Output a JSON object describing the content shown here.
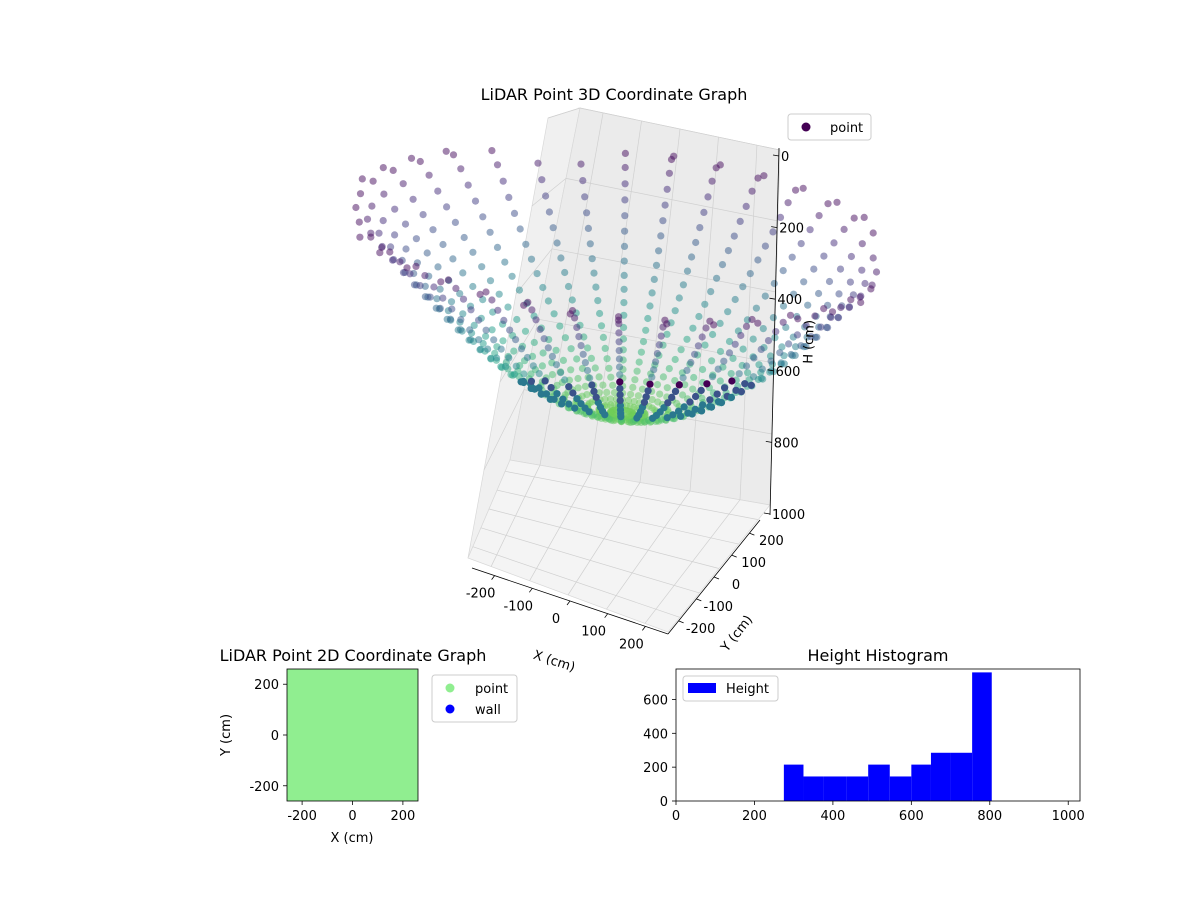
{
  "chart_data": [
    {
      "type": "scatter",
      "projection": "3d",
      "title": "LiDAR Point 3D Coordinate Graph",
      "xlabel": "X (cm)",
      "ylabel": "Y (cm)",
      "zlabel": "H (cm)",
      "xlim": [
        -260,
        260
      ],
      "ylim": [
        -260,
        260
      ],
      "zlim": [
        0,
        1000
      ],
      "z_inverted": true,
      "x_ticks": [
        -200,
        -100,
        0,
        100,
        200
      ],
      "y_ticks": [
        -200,
        -100,
        0,
        100,
        200
      ],
      "z_ticks": [
        0,
        200,
        400,
        600,
        800,
        1000
      ],
      "legend": [
        "point"
      ],
      "legend_position": "upper-right",
      "colormap": "viridis",
      "grid": true,
      "series": [
        {
          "name": "point",
          "shape": "bowl",
          "radius_range": [
            0,
            260
          ],
          "depth_range": [
            250,
            800
          ],
          "azimuth_count": 36,
          "radial_count": 24,
          "marker_color": "#440154"
        }
      ]
    },
    {
      "type": "scatter",
      "title": "LiDAR Point 2D Coordinate Graph",
      "xlabel": "X (cm)",
      "ylabel": "Y (cm)",
      "xlim": [
        -260,
        260
      ],
      "ylim": [
        -260,
        260
      ],
      "x_ticks": [
        -200,
        0,
        200
      ],
      "y_ticks": [
        -200,
        0,
        200
      ],
      "series": [
        {
          "name": "point",
          "color": "#90ee90"
        },
        {
          "name": "wall",
          "color": "#0000ff"
        }
      ],
      "legend_position": "outside-right"
    },
    {
      "type": "bar",
      "subtype": "histogram",
      "title": "Height Histogram",
      "xlim": [
        0,
        1030
      ],
      "ylim": [
        0,
        780
      ],
      "x_ticks": [
        0,
        200,
        400,
        600,
        800,
        1000
      ],
      "y_ticks": [
        0,
        200,
        400,
        600
      ],
      "legend": [
        "Height"
      ],
      "legend_position": "upper-left",
      "bar_color": "#0000ff",
      "bins": [
        {
          "start": 275,
          "end": 325,
          "count": 215
        },
        {
          "start": 325,
          "end": 375,
          "count": 145
        },
        {
          "start": 375,
          "end": 435,
          "count": 145
        },
        {
          "start": 435,
          "end": 490,
          "count": 145
        },
        {
          "start": 490,
          "end": 545,
          "count": 215
        },
        {
          "start": 545,
          "end": 600,
          "count": 145
        },
        {
          "start": 600,
          "end": 650,
          "count": 215
        },
        {
          "start": 650,
          "end": 700,
          "count": 285
        },
        {
          "start": 700,
          "end": 755,
          "count": 285
        },
        {
          "start": 755,
          "end": 805,
          "count": 760
        }
      ]
    }
  ]
}
